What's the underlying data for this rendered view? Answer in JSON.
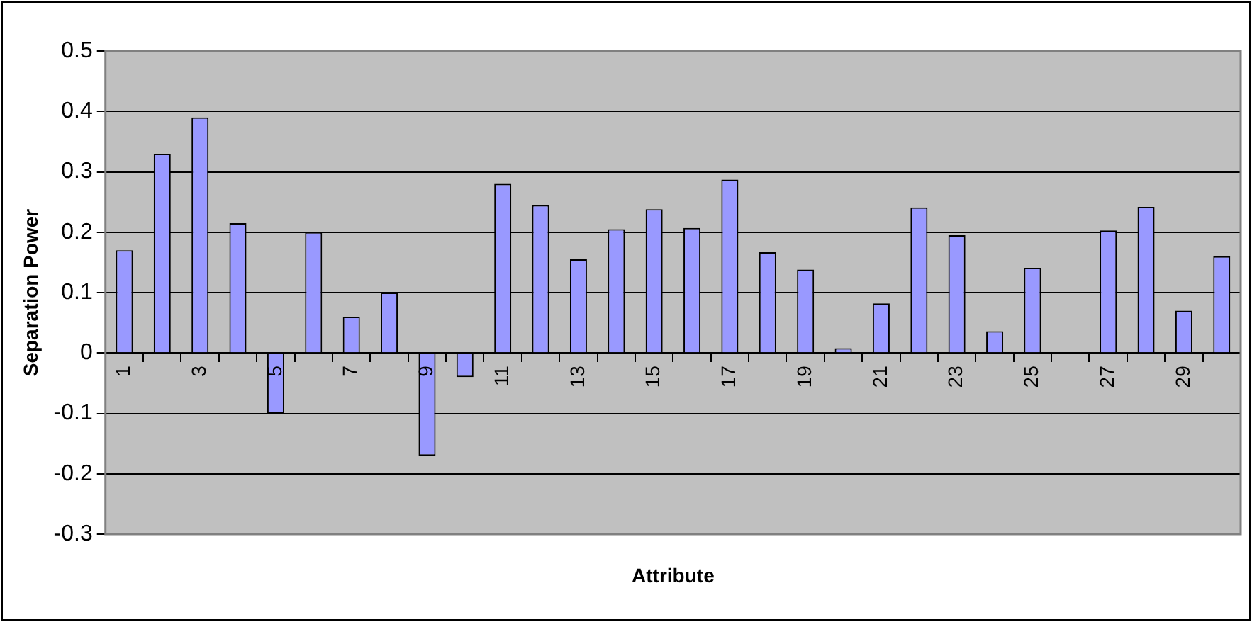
{
  "chart_data": {
    "type": "bar",
    "xlabel": "Attribute",
    "ylabel": "Separation Power",
    "categories": [
      "1",
      null,
      "3",
      null,
      "5",
      null,
      "7",
      null,
      "9",
      null,
      "11",
      null,
      "13",
      null,
      "15",
      null,
      "17",
      null,
      "19",
      null,
      "21",
      null,
      "23",
      null,
      "25",
      null,
      "27",
      null,
      "29",
      null
    ],
    "values": [
      0.17,
      0.33,
      0.39,
      0.215,
      -0.1,
      0.2,
      0.06,
      0.1,
      -0.17,
      -0.04,
      0.28,
      0.245,
      0.155,
      0.205,
      0.238,
      0.207,
      0.287,
      0.167,
      0.138,
      0.008,
      0.082,
      0.241,
      0.195,
      0.036,
      0.141,
      0,
      0.203,
      0.242,
      0.07,
      0.16
    ],
    "color": "#9999ff",
    "ylim": [
      -0.3,
      0.5
    ],
    "yticks": [
      -0.3,
      -0.2,
      -0.1,
      0,
      0.1,
      0.2,
      0.3,
      0.4,
      0.5
    ],
    "grid": "y",
    "legend": false
  }
}
